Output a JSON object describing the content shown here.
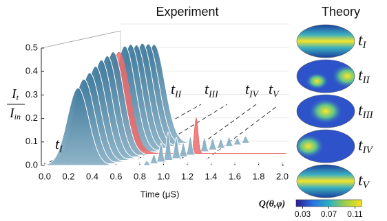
{
  "chart_data": {
    "type": "waterfall",
    "title": "Experiment",
    "x_label": "Time (μS)",
    "y_label": {
      "numerator": {
        "base": "I",
        "sub": "t"
      },
      "denominator": {
        "base": "I",
        "sub": "in"
      }
    },
    "xlim": [
      0,
      2
    ],
    "xticks": [
      {
        "value": 0,
        "label": "0.0"
      },
      0.2,
      0.4,
      0.6,
      0.8,
      {
        "value": 1,
        "label": "1.0"
      },
      1.2,
      1.4,
      1.6,
      1.8,
      {
        "value": 2,
        "label": "2.0"
      }
    ],
    "ylim": [
      0,
      0.5
    ],
    "yticks": [
      {
        "value": 0,
        "label": "0.0"
      },
      0.1,
      0.2,
      0.3,
      0.4,
      0.5
    ],
    "peak_time": 0.28,
    "values": [
      0.33,
      0.36,
      0.38,
      0.4,
      0.42,
      0.43,
      0.44,
      0.43,
      0.45,
      0.45,
      0.44,
      0.44,
      0.43,
      0.42
    ],
    "echo_times": [
      0.86,
      0.87,
      0.88,
      0.89,
      0.91,
      0.92,
      0.93,
      0.93,
      0.95,
      0.97,
      0.99,
      1.01,
      1.03,
      1.05
    ],
    "echo_values": [
      0.02,
      0.04,
      0.08,
      0.12,
      0.09,
      0.06,
      0.08,
      0.15,
      0.06,
      0.05,
      0.04,
      0.04,
      0.03,
      0.03
    ],
    "color": "#4a84a6",
    "highlight_index": 7,
    "highlight_color": "#ec6b6b",
    "markers": [
      {
        "base": "t",
        "sub": "I"
      },
      {
        "base": "t",
        "sub": "II"
      },
      {
        "base": "t",
        "sub": "III"
      },
      {
        "base": "t",
        "sub": "IV"
      },
      {
        "base": "t",
        "sub": "V"
      }
    ]
  },
  "theory": {
    "title": "Theory",
    "panels": [
      {
        "base": "t",
        "sub": "I"
      },
      {
        "base": "t",
        "sub": "II"
      },
      {
        "base": "t",
        "sub": "III"
      },
      {
        "base": "t",
        "sub": "IV"
      },
      {
        "base": "t",
        "sub": "V"
      }
    ],
    "colorbar": {
      "label": "Q(θ,φ)",
      "clim": [
        0.02,
        0.12
      ],
      "ticks": [
        0.03,
        0.07,
        0.11
      ]
    }
  }
}
